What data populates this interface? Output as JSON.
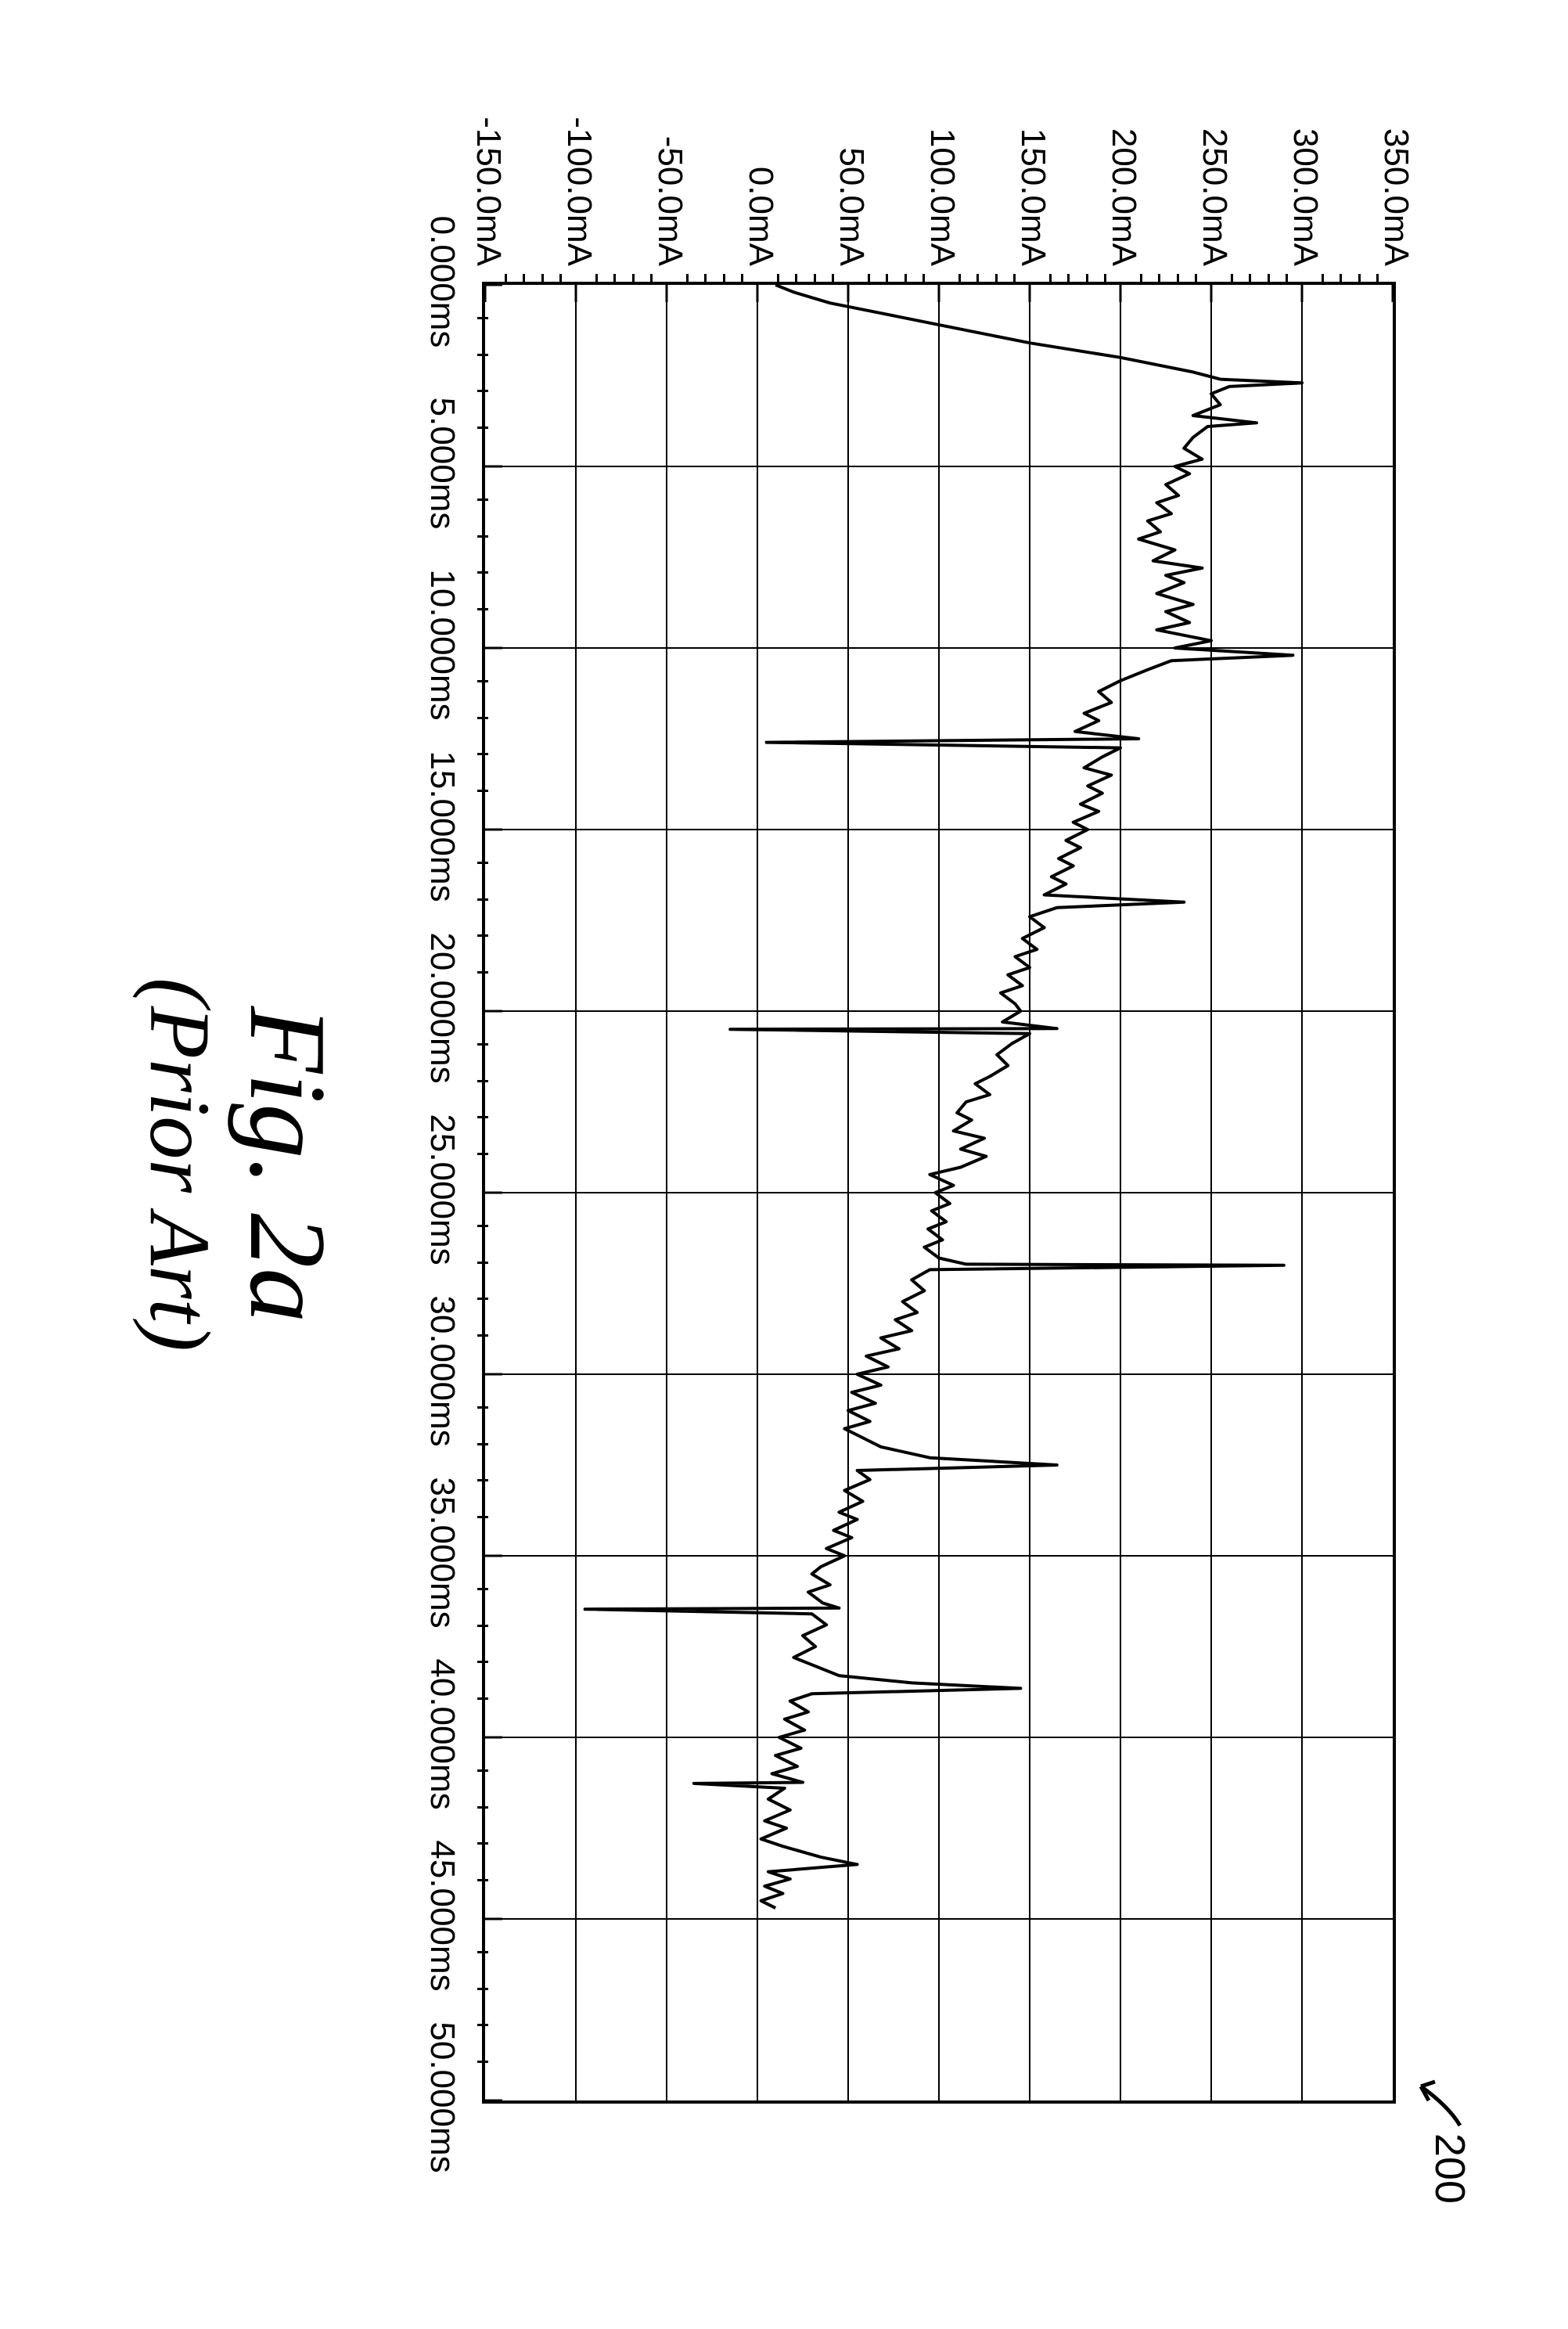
{
  "reference_label": "200",
  "caption_main": "Fig. 2a",
  "caption_sub": "(Prior Art)",
  "chart": {
    "type": "line",
    "y_label_unit": "mA",
    "y_ticks": [
      "350.0mA",
      "300.0mA",
      "250.0mA",
      "200.0mA",
      "150.0mA",
      "100.0mA",
      "50.0mA",
      "0.0mA",
      "-50.0mA",
      "-100.0mA",
      "-150.0mA"
    ],
    "y_min": -150,
    "y_max": 350,
    "y_grid_values": [
      300,
      250,
      200,
      150,
      100,
      50,
      0,
      -50,
      -100
    ],
    "y_minor_step": 10,
    "x_label_unit": "ms",
    "x_ticks": [
      "0.000ms",
      "5.000ms",
      "10.000ms",
      "15.000ms",
      "20.000ms",
      "25.000ms",
      "30.000ms",
      "35.000ms",
      "40.000ms",
      "45.000ms",
      "50.000ms"
    ],
    "x_min": 0,
    "x_max": 50,
    "x_grid_values": [
      5,
      10,
      15,
      20,
      25,
      30,
      35,
      40,
      45
    ],
    "x_minor_step": 1,
    "line_color": "#000000",
    "grid_color": "#000000",
    "background_color": "#ffffff",
    "line_width": 4,
    "data": [
      [
        0.0,
        10
      ],
      [
        0.2,
        20
      ],
      [
        0.5,
        40
      ],
      [
        0.8,
        70
      ],
      [
        1.2,
        110
      ],
      [
        1.6,
        150
      ],
      [
        2.0,
        200
      ],
      [
        2.4,
        240
      ],
      [
        2.6,
        255
      ],
      [
        2.7,
        300
      ],
      [
        2.8,
        260
      ],
      [
        3.0,
        250
      ],
      [
        3.3,
        255
      ],
      [
        3.6,
        240
      ],
      [
        3.8,
        275
      ],
      [
        3.9,
        248
      ],
      [
        4.2,
        240
      ],
      [
        4.5,
        235
      ],
      [
        4.8,
        245
      ],
      [
        5.0,
        230
      ],
      [
        5.2,
        238
      ],
      [
        5.5,
        225
      ],
      [
        5.8,
        232
      ],
      [
        6.0,
        220
      ],
      [
        6.3,
        228
      ],
      [
        6.5,
        215
      ],
      [
        6.8,
        222
      ],
      [
        7.0,
        210
      ],
      [
        7.3,
        230
      ],
      [
        7.6,
        218
      ],
      [
        7.8,
        245
      ],
      [
        8.0,
        225
      ],
      [
        8.2,
        235
      ],
      [
        8.5,
        220
      ],
      [
        8.8,
        240
      ],
      [
        9.0,
        225
      ],
      [
        9.3,
        238
      ],
      [
        9.5,
        220
      ],
      [
        9.8,
        250
      ],
      [
        10.0,
        230
      ],
      [
        10.2,
        295
      ],
      [
        10.35,
        228
      ],
      [
        10.6,
        215
      ],
      [
        10.9,
        200
      ],
      [
        11.2,
        188
      ],
      [
        11.5,
        195
      ],
      [
        11.8,
        180
      ],
      [
        12.0,
        188
      ],
      [
        12.3,
        175
      ],
      [
        12.5,
        210
      ],
      [
        12.6,
        5
      ],
      [
        12.75,
        200
      ],
      [
        13.0,
        190
      ],
      [
        13.3,
        180
      ],
      [
        13.5,
        195
      ],
      [
        13.8,
        182
      ],
      [
        14.0,
        190
      ],
      [
        14.3,
        178
      ],
      [
        14.5,
        188
      ],
      [
        14.8,
        174
      ],
      [
        15.0,
        182
      ],
      [
        15.3,
        170
      ],
      [
        15.5,
        178
      ],
      [
        15.8,
        166
      ],
      [
        16.0,
        174
      ],
      [
        16.3,
        162
      ],
      [
        16.5,
        170
      ],
      [
        16.8,
        158
      ],
      [
        17.0,
        235
      ],
      [
        17.15,
        165
      ],
      [
        17.4,
        150
      ],
      [
        17.7,
        158
      ],
      [
        18.0,
        146
      ],
      [
        18.3,
        154
      ],
      [
        18.5,
        142
      ],
      [
        18.8,
        150
      ],
      [
        19.0,
        138
      ],
      [
        19.3,
        146
      ],
      [
        19.5,
        134
      ],
      [
        19.8,
        142
      ],
      [
        20.0,
        145
      ],
      [
        20.3,
        135
      ],
      [
        20.48,
        165
      ],
      [
        20.5,
        -15
      ],
      [
        20.62,
        150
      ],
      [
        20.9,
        140
      ],
      [
        21.2,
        132
      ],
      [
        21.5,
        138
      ],
      [
        21.8,
        128
      ],
      [
        22.0,
        120
      ],
      [
        22.3,
        128
      ],
      [
        22.5,
        115
      ],
      [
        22.8,
        110
      ],
      [
        23.0,
        118
      ],
      [
        23.3,
        108
      ],
      [
        23.5,
        125
      ],
      [
        23.8,
        112
      ],
      [
        24.0,
        126
      ],
      [
        24.3,
        112
      ],
      [
        24.5,
        95
      ],
      [
        24.8,
        108
      ],
      [
        25.0,
        98
      ],
      [
        25.3,
        106
      ],
      [
        25.5,
        96
      ],
      [
        25.8,
        104
      ],
      [
        26.0,
        94
      ],
      [
        26.3,
        102
      ],
      [
        26.5,
        92
      ],
      [
        26.8,
        100
      ],
      [
        26.97,
        115
      ],
      [
        27.0,
        290
      ],
      [
        27.12,
        95
      ],
      [
        27.4,
        85
      ],
      [
        27.7,
        92
      ],
      [
        28.0,
        80
      ],
      [
        28.3,
        88
      ],
      [
        28.5,
        76
      ],
      [
        28.8,
        85
      ],
      [
        29.0,
        68
      ],
      [
        29.3,
        78
      ],
      [
        29.5,
        60
      ],
      [
        29.8,
        72
      ],
      [
        30.0,
        55
      ],
      [
        30.3,
        68
      ],
      [
        30.5,
        52
      ],
      [
        30.8,
        65
      ],
      [
        31.0,
        50
      ],
      [
        31.3,
        62
      ],
      [
        31.5,
        48
      ],
      [
        31.8,
        60
      ],
      [
        32.0,
        68
      ],
      [
        32.3,
        95
      ],
      [
        32.5,
        165
      ],
      [
        32.65,
        55
      ],
      [
        32.9,
        62
      ],
      [
        33.2,
        48
      ],
      [
        33.5,
        58
      ],
      [
        33.8,
        45
      ],
      [
        34.0,
        55
      ],
      [
        34.3,
        42
      ],
      [
        34.5,
        52
      ],
      [
        34.8,
        38
      ],
      [
        35.0,
        48
      ],
      [
        35.3,
        35
      ],
      [
        35.5,
        30
      ],
      [
        35.8,
        40
      ],
      [
        36.0,
        28
      ],
      [
        36.3,
        36
      ],
      [
        36.44,
        45
      ],
      [
        36.47,
        -95
      ],
      [
        36.6,
        30
      ],
      [
        36.9,
        38
      ],
      [
        37.2,
        25
      ],
      [
        37.5,
        32
      ],
      [
        37.8,
        20
      ],
      [
        38.0,
        30
      ],
      [
        38.3,
        45
      ],
      [
        38.5,
        85
      ],
      [
        38.65,
        145
      ],
      [
        38.8,
        30
      ],
      [
        39.0,
        18
      ],
      [
        39.3,
        28
      ],
      [
        39.5,
        15
      ],
      [
        39.8,
        26
      ],
      [
        40.0,
        12
      ],
      [
        40.3,
        24
      ],
      [
        40.5,
        10
      ],
      [
        40.8,
        22
      ],
      [
        41.0,
        8
      ],
      [
        41.24,
        25
      ],
      [
        41.27,
        -35
      ],
      [
        41.4,
        15
      ],
      [
        41.7,
        6
      ],
      [
        42.0,
        18
      ],
      [
        42.3,
        4
      ],
      [
        42.5,
        16
      ],
      [
        42.8,
        2
      ],
      [
        43.0,
        14
      ],
      [
        43.3,
        35
      ],
      [
        43.5,
        55
      ],
      [
        43.7,
        6
      ],
      [
        43.9,
        18
      ],
      [
        44.1,
        4
      ],
      [
        44.3,
        14
      ],
      [
        44.5,
        2
      ],
      [
        44.7,
        10
      ]
    ]
  }
}
